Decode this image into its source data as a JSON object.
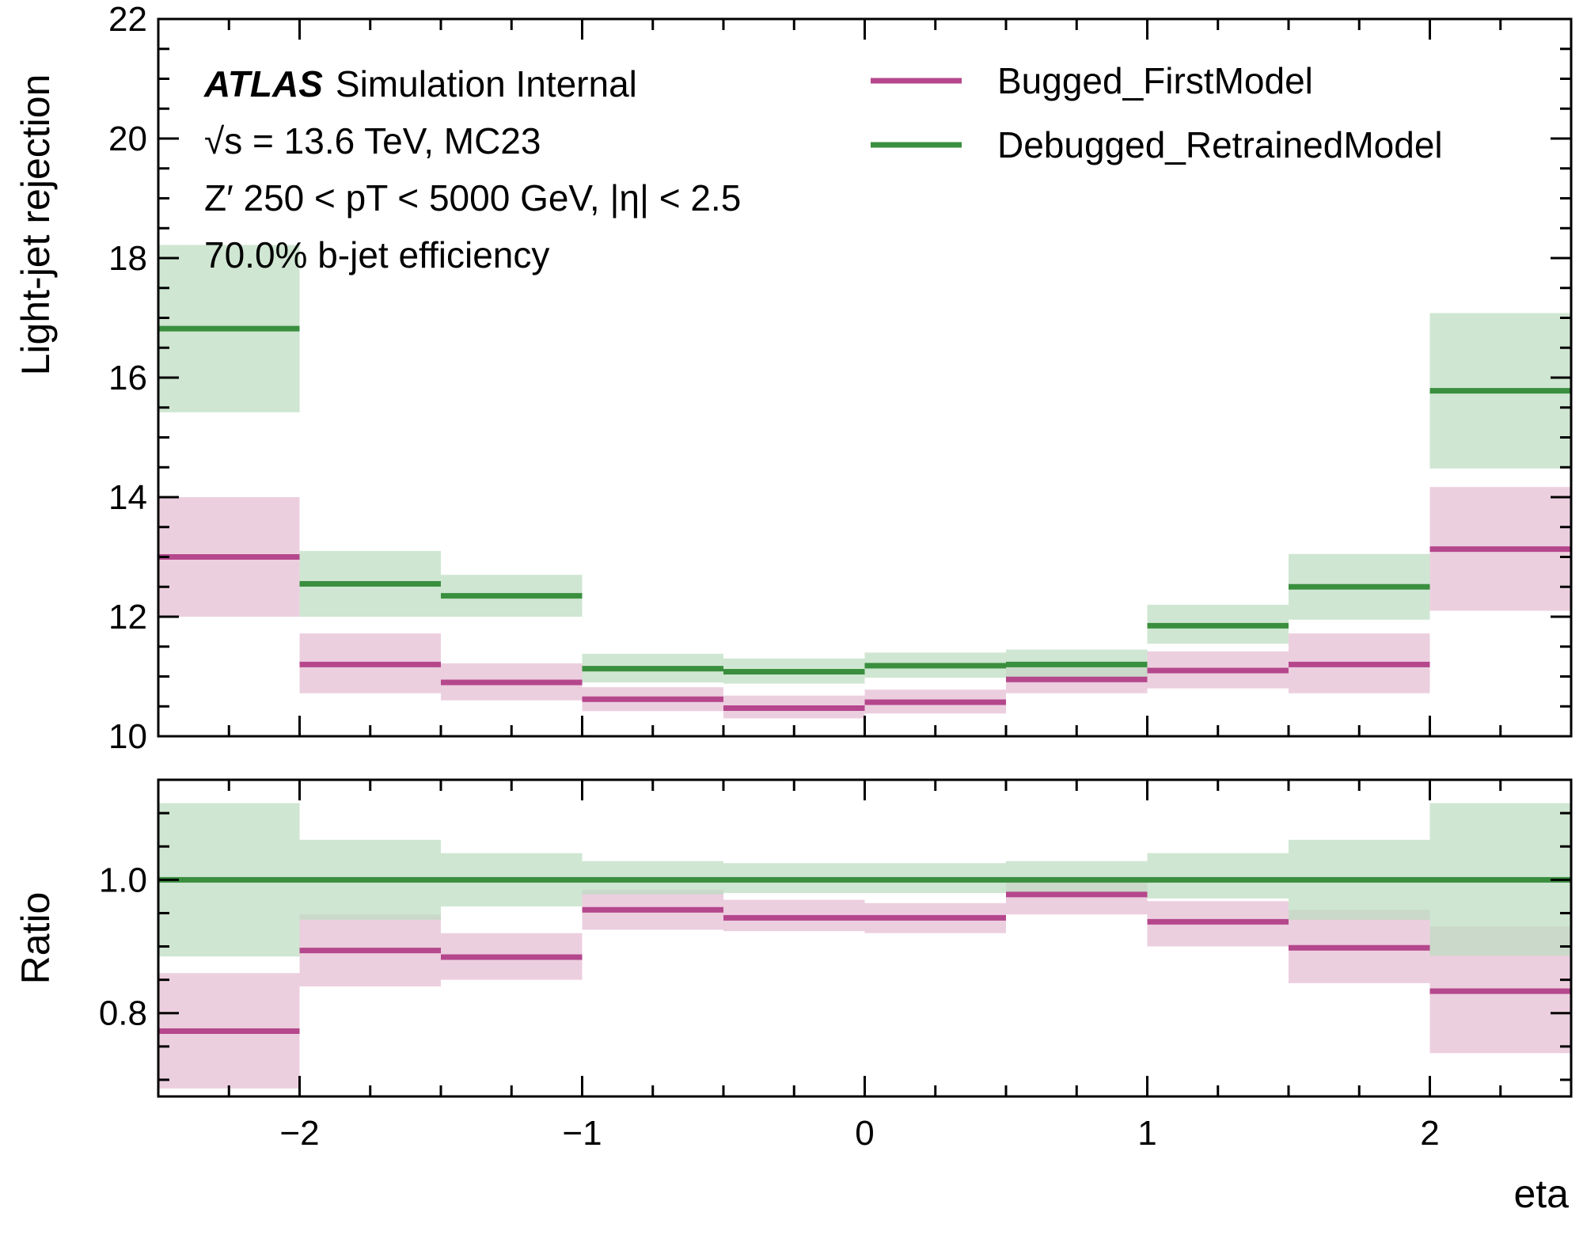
{
  "chart_data": {
    "type": "step",
    "xlabel": "eta",
    "xlim": [
      -2.5,
      2.5
    ],
    "bin_edges": [
      -2.5,
      -2.0,
      -1.5,
      -1.0,
      -0.5,
      0.0,
      0.5,
      1.0,
      1.5,
      2.0,
      2.5
    ],
    "xticks": [
      {
        "value": -2,
        "label": "−2"
      },
      {
        "value": -1,
        "label": "−1"
      },
      {
        "value": 0,
        "label": "0"
      },
      {
        "value": 1,
        "label": "1"
      },
      {
        "value": 2,
        "label": "2"
      }
    ],
    "annotation": {
      "atlas": "ATLAS",
      "status": "Simulation Internal",
      "line2": "√s = 13.6 TeV, MC23",
      "line3": "Z′ 250 < pT < 5000 GeV, |η| < 2.5",
      "line4": "70.0% b-jet efficiency"
    },
    "legend_position": "top-right",
    "top_panel": {
      "ylabel": "Light-jet rejection",
      "ylim": [
        10,
        22
      ],
      "yticks": [
        10,
        12,
        14,
        16,
        18,
        20,
        22
      ],
      "series": [
        {
          "name": "Bugged_FirstModel",
          "color": "#b5478c",
          "band_color": "#e4bcd3",
          "values": [
            13.0,
            11.2,
            10.9,
            10.62,
            10.47,
            10.57,
            10.95,
            11.1,
            11.2,
            13.13
          ],
          "lower": [
            12.0,
            10.72,
            10.6,
            10.42,
            10.3,
            10.38,
            10.72,
            10.8,
            10.72,
            12.1
          ],
          "upper": [
            14.0,
            11.72,
            11.22,
            10.82,
            10.68,
            10.78,
            11.2,
            11.42,
            11.72,
            14.17
          ]
        },
        {
          "name": "Debugged_RetrainedModel",
          "color": "#3a8f3f",
          "band_color": "#bcdcc0",
          "values": [
            16.82,
            12.55,
            12.35,
            11.13,
            11.08,
            11.18,
            11.2,
            11.85,
            12.5,
            15.78
          ],
          "lower": [
            15.42,
            12.0,
            12.0,
            10.9,
            10.88,
            10.98,
            10.98,
            11.55,
            11.95,
            14.48
          ],
          "upper": [
            18.22,
            13.1,
            12.7,
            11.38,
            11.3,
            11.4,
            11.45,
            12.2,
            13.05,
            17.08
          ]
        }
      ]
    },
    "bottom_panel": {
      "ylabel": "Ratio",
      "ylim": [
        0.675,
        1.15
      ],
      "yticks": [
        0.8,
        1.0
      ],
      "ytick_labels": [
        "0.8",
        "1.0"
      ],
      "series": [
        {
          "name": "Bugged_FirstModel",
          "color": "#b5478c",
          "band_color": "#e4bcd3",
          "values": [
            0.773,
            0.894,
            0.884,
            0.955,
            0.943,
            0.943,
            0.978,
            0.937,
            0.898,
            0.833
          ],
          "lower": [
            0.687,
            0.84,
            0.85,
            0.925,
            0.923,
            0.92,
            0.948,
            0.9,
            0.845,
            0.74
          ],
          "upper": [
            0.86,
            0.948,
            0.92,
            0.985,
            0.97,
            0.965,
            1.0,
            0.968,
            0.955,
            0.93
          ]
        },
        {
          "name": "Debugged_RetrainedModel",
          "color": "#3a8f3f",
          "band_color": "#bcdcc0",
          "values": [
            1.0,
            1.0,
            1.0,
            1.0,
            1.0,
            1.0,
            1.0,
            1.0,
            1.0,
            1.0
          ],
          "lower": [
            0.885,
            0.94,
            0.96,
            0.978,
            0.98,
            0.98,
            0.978,
            0.972,
            0.94,
            0.886
          ],
          "upper": [
            1.115,
            1.06,
            1.04,
            1.028,
            1.025,
            1.025,
            1.028,
            1.04,
            1.06,
            1.115
          ]
        }
      ]
    }
  }
}
